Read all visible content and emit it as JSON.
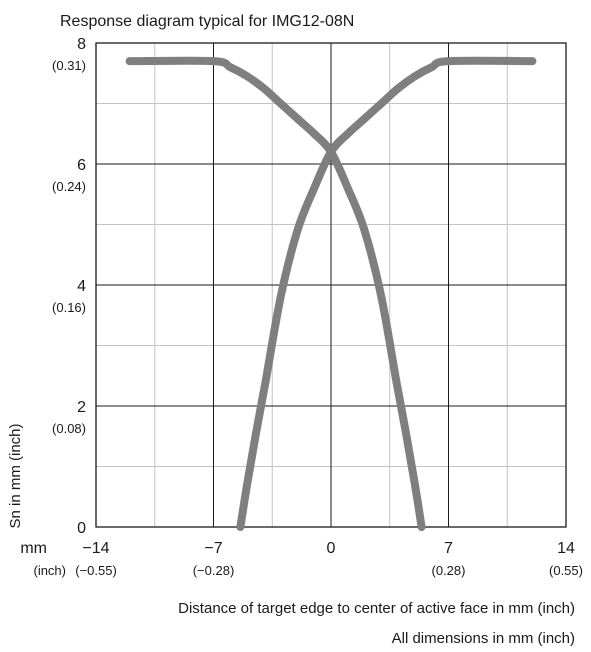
{
  "chart_data": {
    "type": "line",
    "title": "Response diagram typical for IMG12-08N",
    "ylabel": "Sn in mm (inch)",
    "xlabel": "Distance of target edge to center of active face in mm (inch)",
    "footnote": "All dimensions in mm (inch)",
    "x_unit_label": "mm",
    "x_unit_sub_label": "(inch)",
    "xlim": [
      -14,
      14
    ],
    "ylim": [
      0,
      8
    ],
    "grid": true,
    "series_color": "#7f7f7f",
    "x_ticks": [
      {
        "value": -14,
        "label": "−14",
        "sub": "(−0.55)"
      },
      {
        "value": -7,
        "label": "−7",
        "sub": "(−0.28)"
      },
      {
        "value": 0,
        "label": "0",
        "sub": ""
      },
      {
        "value": 7,
        "label": "7",
        "sub": "(0.28)"
      },
      {
        "value": 14,
        "label": "14",
        "sub": "(0.55)"
      }
    ],
    "y_ticks": [
      {
        "value": 0,
        "label": "0",
        "sub": ""
      },
      {
        "value": 2,
        "label": "2",
        "sub": "(0.08)"
      },
      {
        "value": 4,
        "label": "4",
        "sub": "(0.16)"
      },
      {
        "value": 6,
        "label": "6",
        "sub": "(0.24)"
      },
      {
        "value": 8,
        "label": "8",
        "sub": "(0.31)"
      }
    ],
    "series": [
      {
        "x": [
          -12,
          -7,
          -6,
          -5,
          -4,
          -3,
          -2,
          -1,
          0,
          1,
          2,
          3,
          3.9,
          4.5,
          5,
          5.4
        ],
        "y": [
          7.7,
          7.7,
          7.6,
          7.45,
          7.25,
          7.0,
          6.75,
          6.5,
          6.2,
          5.6,
          4.9,
          3.8,
          2.4,
          1.5,
          0.7,
          0
        ]
      },
      {
        "x": [
          -5.4,
          -5,
          -4.5,
          -3.9,
          -3,
          -2,
          -1,
          0,
          1,
          2,
          3,
          4,
          5,
          6,
          7,
          12
        ],
        "y": [
          0,
          0.7,
          1.5,
          2.4,
          3.8,
          4.9,
          5.6,
          6.2,
          6.5,
          6.75,
          7.0,
          7.25,
          7.45,
          7.6,
          7.7,
          7.7
        ]
      }
    ]
  }
}
